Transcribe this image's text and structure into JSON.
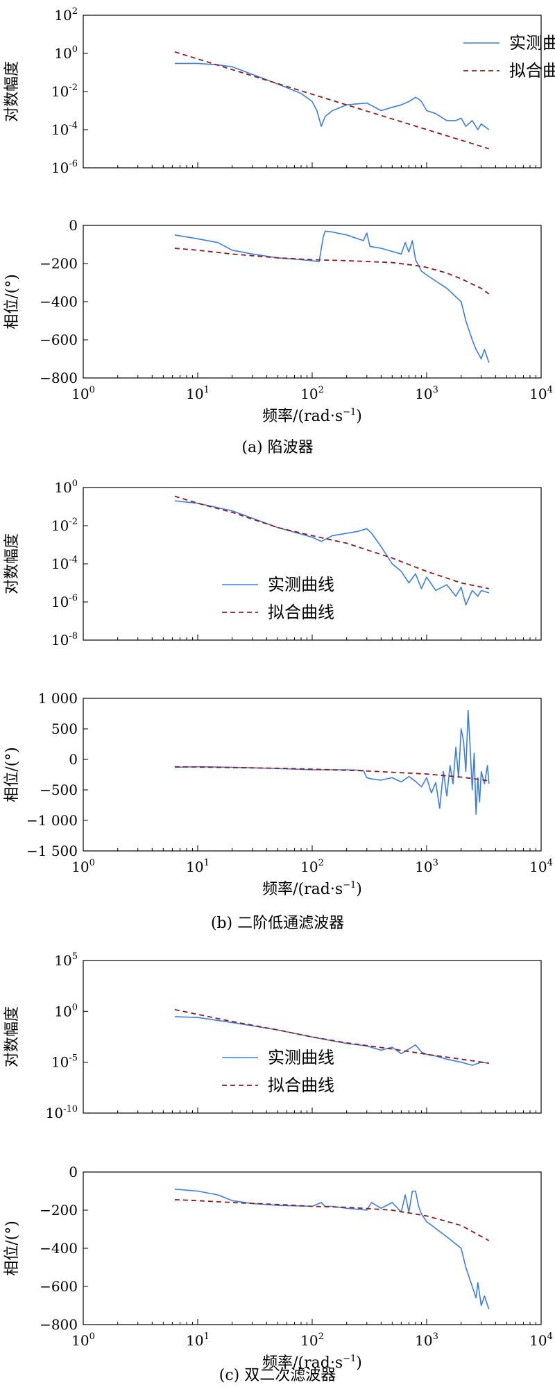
{
  "chart_data": [
    {
      "id": "a-mag",
      "type": "line",
      "xscale": "log",
      "yscale": "log",
      "xlim": [
        1,
        10000
      ],
      "ylim": [
        1e-06,
        100
      ],
      "ylabel": "对数幅度",
      "yticks": [
        {
          "b": "10",
          "e": "2",
          "v": 100
        },
        {
          "b": "10",
          "e": "0",
          "v": 1
        },
        {
          "b": "10",
          "e": "-2",
          "v": 0.01
        },
        {
          "b": "10",
          "e": "-4",
          "v": 0.0001
        },
        {
          "b": "10",
          "e": "-6",
          "v": 1e-06
        }
      ],
      "legend": {
        "position": "top-right",
        "entries": [
          "实测曲线",
          "拟合曲线"
        ]
      },
      "series": [
        {
          "name": "实测曲线",
          "style": "measured",
          "x": [
            6.3,
            10,
            15,
            20,
            30,
            50,
            80,
            100,
            110,
            120,
            130,
            150,
            200,
            300,
            400,
            500,
            600,
            700,
            800,
            850,
            900,
            1000,
            1200,
            1500,
            1800,
            2000,
            2200,
            2500,
            2800,
            3000,
            3500
          ],
          "y": [
            0.3,
            0.3,
            0.25,
            0.2,
            0.08,
            0.025,
            0.008,
            0.003,
            0.001,
            0.00015,
            0.0005,
            0.001,
            0.002,
            0.0025,
            0.001,
            0.0015,
            0.002,
            0.003,
            0.005,
            0.004,
            0.003,
            0.001,
            0.0007,
            0.0003,
            0.0003,
            0.0004,
            0.00015,
            0.0003,
            0.0001,
            0.0002,
            0.0001
          ]
        },
        {
          "name": "拟合曲线",
          "style": "fitted",
          "x": [
            6.3,
            3500
          ],
          "y": [
            1.2,
            1e-05
          ]
        }
      ]
    },
    {
      "id": "a-phase",
      "type": "line",
      "xscale": "log",
      "yscale": "linear",
      "xlim": [
        1,
        10000
      ],
      "ylim": [
        -800,
        0
      ],
      "ylabel": "相位/(°)",
      "xlabel": "频率/(rad·s",
      "xlabel_sup": "−1",
      "xlabel_tail": ")",
      "yticks": [
        {
          "b": "0",
          "v": 0
        },
        {
          "b": "−200",
          "v": -200
        },
        {
          "b": "−400",
          "v": -400
        },
        {
          "b": "−600",
          "v": -600
        },
        {
          "b": "−800",
          "v": -800
        }
      ],
      "xticks": [
        {
          "b": "10",
          "e": "0",
          "v": 1
        },
        {
          "b": "10",
          "e": "1",
          "v": 10
        },
        {
          "b": "10",
          "e": "2",
          "v": 100
        },
        {
          "b": "10",
          "e": "3",
          "v": 1000
        },
        {
          "b": "10",
          "e": "4",
          "v": 10000
        }
      ],
      "series": [
        {
          "name": "实测曲线",
          "style": "measured",
          "x": [
            6.3,
            10,
            15,
            20,
            30,
            50,
            80,
            100,
            115,
            125,
            130,
            150,
            200,
            250,
            280,
            300,
            320,
            400,
            600,
            650,
            700,
            750,
            800,
            900,
            1000,
            1500,
            2000,
            2200,
            2500,
            2700,
            3000,
            3200,
            3500
          ],
          "y": [
            -50,
            -70,
            -90,
            -130,
            -150,
            -170,
            -180,
            -185,
            -190,
            -60,
            -30,
            -35,
            -50,
            -70,
            -80,
            -40,
            -110,
            -120,
            -150,
            -90,
            -140,
            -80,
            -180,
            -240,
            -260,
            -330,
            -400,
            -500,
            -600,
            -650,
            -700,
            -650,
            -720
          ]
        },
        {
          "name": "拟合曲线",
          "style": "fitted",
          "x": [
            6.3,
            10,
            20,
            50,
            100,
            200,
            500,
            800,
            1000,
            1500,
            2000,
            3000,
            3500
          ],
          "y": [
            -120,
            -130,
            -150,
            -170,
            -180,
            -185,
            -195,
            -210,
            -220,
            -250,
            -280,
            -330,
            -360
          ]
        }
      ]
    },
    {
      "id": "b-mag",
      "type": "line",
      "xscale": "log",
      "yscale": "log",
      "xlim": [
        1,
        10000
      ],
      "ylim": [
        1e-08,
        1
      ],
      "ylabel": "对数幅度",
      "yticks": [
        {
          "b": "10",
          "e": "0",
          "v": 1
        },
        {
          "b": "10",
          "e": "-2",
          "v": 0.01
        },
        {
          "b": "10",
          "e": "-4",
          "v": 0.0001
        },
        {
          "b": "10",
          "e": "-6",
          "v": 1e-06
        },
        {
          "b": "10",
          "e": "-8",
          "v": 1e-08
        }
      ],
      "legend": {
        "position": "bottom-left",
        "entries": [
          "实测曲线",
          "拟合曲线"
        ]
      },
      "series": [
        {
          "name": "实测曲线",
          "style": "measured",
          "x": [
            6.3,
            10,
            20,
            50,
            100,
            120,
            150,
            200,
            250,
            300,
            330,
            400,
            500,
            600,
            700,
            800,
            900,
            1000,
            1200,
            1500,
            1800,
            2000,
            2200,
            2500,
            2800,
            3000,
            3500
          ],
          "y": [
            0.2,
            0.15,
            0.06,
            0.008,
            0.0025,
            0.0015,
            0.003,
            0.004,
            0.005,
            0.007,
            0.004,
            0.0008,
            0.0001,
            4e-05,
            1e-05,
            3e-05,
            5e-06,
            2e-05,
            4e-06,
            8e-06,
            2e-06,
            6e-06,
            7e-07,
            4e-06,
            2e-06,
            4e-06,
            3e-06
          ]
        },
        {
          "name": "拟合曲线",
          "style": "fitted",
          "x": [
            6.3,
            10,
            20,
            50,
            100,
            200,
            500,
            1000,
            2000,
            3500
          ],
          "y": [
            0.35,
            0.15,
            0.05,
            0.008,
            0.003,
            0.0012,
            0.0002,
            4e-05,
            1e-05,
            5e-06
          ]
        }
      ]
    },
    {
      "id": "b-phase",
      "type": "line",
      "xscale": "log",
      "yscale": "linear",
      "xlim": [
        1,
        10000
      ],
      "ylim": [
        -1500,
        1000
      ],
      "ylabel": "相位/(°)",
      "xlabel": "频率/(rad·s",
      "xlabel_sup": "−1",
      "xlabel_tail": ")",
      "yticks": [
        {
          "b": "1 000",
          "v": 1000
        },
        {
          "b": "500",
          "v": 500
        },
        {
          "b": "0",
          "v": 0
        },
        {
          "b": "−500",
          "v": -500
        },
        {
          "b": "−1 000",
          "v": -1000
        },
        {
          "b": "−1 500",
          "v": -1500
        }
      ],
      "xticks": [
        {
          "b": "10",
          "e": "0",
          "v": 1
        },
        {
          "b": "10",
          "e": "1",
          "v": 10
        },
        {
          "b": "10",
          "e": "2",
          "v": 100
        },
        {
          "b": "10",
          "e": "3",
          "v": 1000
        },
        {
          "b": "10",
          "e": "4",
          "v": 10000
        }
      ],
      "series": [
        {
          "name": "实测曲线",
          "style": "measured",
          "x": [
            6.3,
            10,
            20,
            50,
            100,
            200,
            280,
            300,
            330,
            400,
            500,
            600,
            700,
            800,
            900,
            1000,
            1100,
            1200,
            1300,
            1400,
            1500,
            1600,
            1700,
            1800,
            1900,
            2000,
            2100,
            2200,
            2300,
            2400,
            2500,
            2600,
            2700,
            2800,
            2900,
            3000,
            3200,
            3400,
            3500
          ],
          "y": [
            -130,
            -120,
            -130,
            -150,
            -170,
            -170,
            -180,
            -300,
            -320,
            -340,
            -300,
            -370,
            -280,
            -360,
            -450,
            -300,
            -550,
            -380,
            -800,
            -200,
            -600,
            -100,
            -400,
            200,
            -300,
            500,
            300,
            -200,
            800,
            200,
            -500,
            100,
            -900,
            -300,
            -700,
            -200,
            -400,
            -100,
            -400
          ]
        },
        {
          "name": "拟合曲线",
          "style": "fitted",
          "x": [
            6.3,
            10,
            50,
            100,
            300,
            1000,
            2000,
            3500
          ],
          "y": [
            -120,
            -125,
            -145,
            -160,
            -190,
            -240,
            -290,
            -350
          ]
        }
      ]
    },
    {
      "id": "c-mag",
      "type": "line",
      "xscale": "log",
      "yscale": "log",
      "xlim": [
        1,
        10000
      ],
      "ylim": [
        1e-10,
        100000
      ],
      "ylabel": "对数幅度",
      "yticks": [
        {
          "b": "10",
          "e": "5",
          "v": 100000
        },
        {
          "b": "10",
          "e": "0",
          "v": 1
        },
        {
          "b": "10",
          "e": "-5",
          "v": 1e-05
        },
        {
          "b": "10",
          "e": "-10",
          "v": 1e-10
        }
      ],
      "legend": {
        "position": "bottom-left",
        "entries": [
          "实测曲线",
          "拟合曲线"
        ]
      },
      "series": [
        {
          "name": "实测曲线",
          "style": "measured",
          "x": [
            6.3,
            10,
            20,
            50,
            100,
            200,
            300,
            400,
            500,
            600,
            700,
            800,
            900,
            1000,
            1200,
            1500,
            2000,
            2500,
            3000,
            3500
          ],
          "y": [
            0.3,
            0.25,
            0.08,
            0.015,
            0.003,
            0.0007,
            0.0004,
            0.00015,
            0.0003,
            7e-05,
            0.0002,
            0.0005,
            0.0001,
            6e-05,
            4e-05,
            2e-05,
            1e-05,
            5e-06,
            1e-05,
            8e-06
          ]
        },
        {
          "name": "拟合曲线",
          "style": "fitted",
          "x": [
            6.3,
            10,
            20,
            50,
            100,
            200,
            500,
            1000,
            2000,
            3500
          ],
          "y": [
            1.5,
            0.5,
            0.1,
            0.015,
            0.003,
            0.0008,
            0.0002,
            6e-05,
            2e-05,
            8e-06
          ]
        }
      ]
    },
    {
      "id": "c-phase",
      "type": "line",
      "xscale": "log",
      "yscale": "linear",
      "xlim": [
        1,
        10000
      ],
      "ylim": [
        -800,
        0
      ],
      "ylabel": "相位/(°)",
      "xlabel": "频率/(rad·s",
      "xlabel_sup": "−1",
      "xlabel_tail": ")",
      "yticks": [
        {
          "b": "0",
          "v": 0
        },
        {
          "b": "−200",
          "v": -200
        },
        {
          "b": "−400",
          "v": -400
        },
        {
          "b": "−600",
          "v": -600
        },
        {
          "b": "−800",
          "v": -800
        }
      ],
      "xticks": [
        {
          "b": "10",
          "e": "0",
          "v": 1
        },
        {
          "b": "10",
          "e": "1",
          "v": 10
        },
        {
          "b": "10",
          "e": "2",
          "v": 100
        },
        {
          "b": "10",
          "e": "3",
          "v": 1000
        },
        {
          "b": "10",
          "e": "4",
          "v": 10000
        }
      ],
      "series": [
        {
          "name": "实测曲线",
          "style": "measured",
          "x": [
            6.3,
            10,
            15,
            20,
            30,
            50,
            100,
            120,
            130,
            150,
            200,
            300,
            330,
            400,
            500,
            600,
            650,
            700,
            750,
            800,
            850,
            900,
            1000,
            1500,
            2000,
            2200,
            2500,
            2700,
            2800,
            3000,
            3200,
            3500
          ],
          "y": [
            -90,
            -100,
            -120,
            -150,
            -165,
            -175,
            -180,
            -160,
            -180,
            -180,
            -190,
            -200,
            -160,
            -190,
            -160,
            -210,
            -120,
            -210,
            -100,
            -100,
            -180,
            -220,
            -260,
            -340,
            -400,
            -500,
            -600,
            -660,
            -580,
            -700,
            -650,
            -720
          ]
        },
        {
          "name": "拟合曲线",
          "style": "fitted",
          "x": [
            6.3,
            10,
            20,
            50,
            100,
            200,
            500,
            1000,
            2000,
            3500
          ],
          "y": [
            -145,
            -150,
            -160,
            -170,
            -180,
            -185,
            -200,
            -230,
            -280,
            -360
          ]
        }
      ]
    }
  ],
  "captions": {
    "a": "(a) 陷波器",
    "b": "(b) 二阶低通滤波器",
    "c": "(c) 双二次滤波器"
  },
  "colors": {
    "measured": "#3b7ddd",
    "fitted": "#8b1a1a"
  }
}
